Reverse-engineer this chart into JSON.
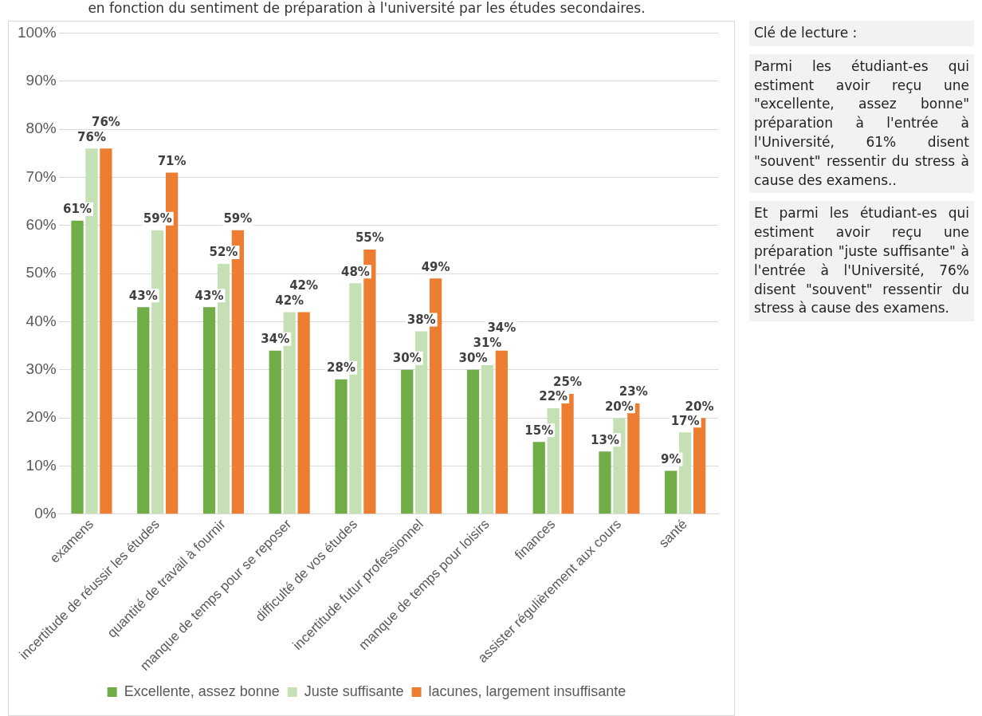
{
  "chart_data": {
    "type": "bar",
    "subtitle": "en fonction du sentiment de préparation à l'université par les études secondaires.",
    "categories": [
      "examens",
      "incertitude de réussir les études",
      "quantité de travail à fournir",
      "manque de temps pour se reposer",
      "difficulté de vos études",
      "incertitude futur professionnel",
      "manque de temps pour loisirs",
      "finances",
      "assister régulièrement aux cours",
      "santé"
    ],
    "series": [
      {
        "name": "Excellente, assez bonne",
        "color": "#70ad47",
        "values": [
          61,
          43,
          43,
          34,
          28,
          30,
          30,
          15,
          13,
          9
        ],
        "value_labels": [
          "61%",
          "43%",
          "43%",
          "34%",
          "28%",
          "30%",
          "30%",
          "15%",
          "13%",
          "9%"
        ]
      },
      {
        "name": "Juste suffisante",
        "color": "#c5e0b4",
        "values": [
          76,
          59,
          52,
          42,
          48,
          38,
          31,
          22,
          20,
          17
        ],
        "value_labels": [
          "76%",
          "59%",
          "52%",
          "42%",
          "48%",
          "38%",
          "31%",
          "22%",
          "20%",
          "17%"
        ]
      },
      {
        "name": "lacunes, largement insuffisante",
        "color": "#ed7d31",
        "values": [
          76,
          71,
          59,
          42,
          55,
          49,
          34,
          25,
          23,
          20
        ],
        "value_labels": [
          "76%",
          "71%",
          "59%",
          "42%",
          "55%",
          "49%",
          "34%",
          "25%",
          "23%",
          "20%"
        ]
      }
    ],
    "ylim": [
      0,
      100
    ],
    "yticks": [
      {
        "value": 0,
        "label": "0%"
      },
      {
        "value": 10,
        "label": "10%"
      },
      {
        "value": 20,
        "label": "20%"
      },
      {
        "value": 30,
        "label": "30%"
      },
      {
        "value": 40,
        "label": "40%"
      },
      {
        "value": 50,
        "label": "50%"
      },
      {
        "value": 60,
        "label": "60%"
      },
      {
        "value": 70,
        "label": "70%"
      },
      {
        "value": 80,
        "label": "80%"
      },
      {
        "value": 90,
        "label": "90%"
      },
      {
        "value": 100,
        "label": "100%"
      }
    ],
    "grid": "y",
    "legend": "bottom",
    "annotations": [
      "Clé de lecture :",
      "Parmi les étudiant-es qui estiment avoir reçu une \"excellente, assez bonne\" préparation à l'entrée à l'Université, 61% disent \"souvent\" ressentir du stress à cause des examens..",
      "Et parmi les étudiant-es qui estiment avoir reçu une préparation \"juste suffisante\" à l'entrée à l'Université, 76% disent \"souvent\" ressentir du stress à cause des examens."
    ]
  }
}
